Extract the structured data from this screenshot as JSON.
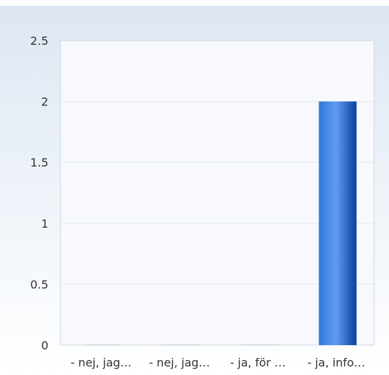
{
  "chart_data": {
    "type": "bar",
    "categories": [
      "- nej, jag…",
      "- nej, jag…",
      "- ja, för …",
      "- ja, info…"
    ],
    "values": [
      0,
      0,
      0,
      2
    ],
    "y_ticks": [
      "0",
      "0.5",
      "1",
      "1.5",
      "2",
      "2.5"
    ],
    "ylim": [
      0,
      2.5
    ],
    "grid": true,
    "title": "",
    "xlabel": "",
    "ylabel": ""
  },
  "colors": {
    "background_top": "#dde7f3",
    "background_bottom": "#ffffff",
    "plot_area": "#f7f9fc",
    "plot_border": "#cfd6df",
    "grid": "#e3e8ef",
    "bar_dark": "#0b3f9e",
    "bar_mid": "#2f78de",
    "bar_light": "#5f9cf0"
  }
}
